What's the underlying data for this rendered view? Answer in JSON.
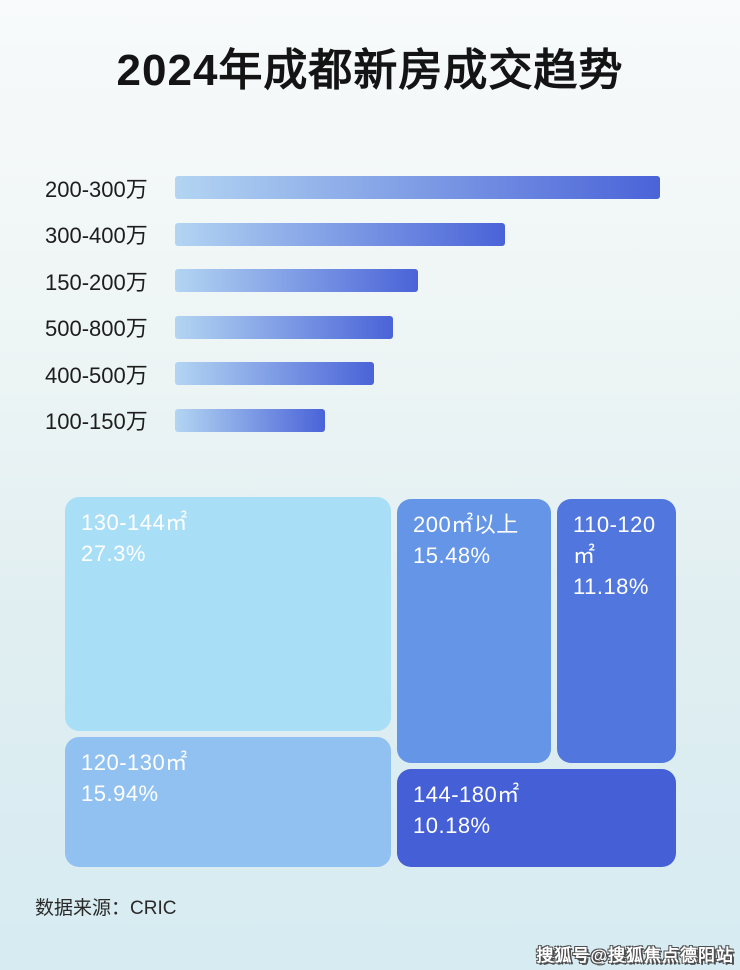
{
  "title": "2024年成都新房成交趋势",
  "colors": {
    "bar_gradient_start": "#b3d5f2",
    "bar_gradient_end": "#4a63d8",
    "treemap_text": "#ffffff"
  },
  "bar_chart": {
    "rows": [
      {
        "label": "200-300万",
        "length_pct": 100
      },
      {
        "label": "300-400万",
        "length_pct": 68
      },
      {
        "label": "150-200万",
        "length_pct": 50
      },
      {
        "label": "500-800万",
        "length_pct": 45
      },
      {
        "label": "400-500万",
        "length_pct": 41
      },
      {
        "label": "100-150万",
        "length_pct": 31
      }
    ]
  },
  "treemap": {
    "cells": [
      {
        "label": "130-144㎡",
        "pct": "27.3%",
        "color": "#a9def7"
      },
      {
        "label": "200㎡以上",
        "pct": "15.48%",
        "color": "#6495e6"
      },
      {
        "label": "110-120㎡",
        "pct": "11.18%",
        "color": "#5177de"
      },
      {
        "label": "120-130㎡",
        "pct": "15.94%",
        "color": "#90c1f0"
      },
      {
        "label": "144-180㎡",
        "pct": "10.18%",
        "color": "#4560d6"
      }
    ]
  },
  "footer": {
    "source_label": "数据来源：CRIC"
  },
  "watermark": "搜狐号@搜狐焦点德阳站",
  "chart_data": [
    {
      "type": "bar",
      "orientation": "horizontal",
      "title": "2024年成都新房成交趋势",
      "categories": [
        "200-300万",
        "300-400万",
        "150-200万",
        "500-800万",
        "400-500万",
        "100-150万"
      ],
      "values": [
        100,
        68,
        50,
        45,
        41,
        31
      ],
      "values_unit": "relative bar length, % of longest bar (no numeric labels shown in image)",
      "grid": false,
      "legend": false
    },
    {
      "type": "treemap",
      "items": [
        {
          "label": "130-144㎡",
          "value": 27.3
        },
        {
          "label": "120-130㎡",
          "value": 15.94
        },
        {
          "label": "200㎡以上",
          "value": 15.48
        },
        {
          "label": "110-120㎡",
          "value": 11.18
        },
        {
          "label": "144-180㎡",
          "value": 10.18
        }
      ],
      "values_unit": "percent"
    }
  ]
}
